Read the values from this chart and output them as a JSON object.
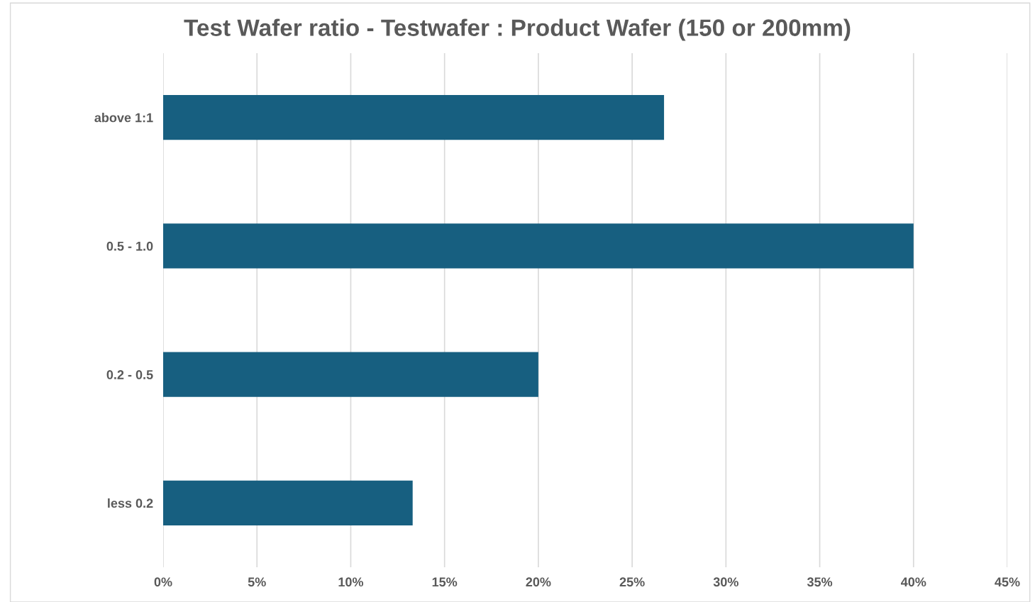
{
  "chart_data": {
    "type": "bar",
    "orientation": "horizontal",
    "title": "Test Wafer ratio - Testwafer : Product Wafer (150 or 200mm)",
    "categories": [
      "above 1:1",
      "0.5 - 1.0",
      "0.2 - 0.5",
      "less 0.2"
    ],
    "values": [
      26.7,
      40,
      20,
      13.3
    ],
    "color": "#175f80",
    "xlim": [
      0,
      45
    ],
    "xticks": [
      {
        "value": 0,
        "label": "0%"
      },
      {
        "value": 5,
        "label": "5%"
      },
      {
        "value": 10,
        "label": "10%"
      },
      {
        "value": 15,
        "label": "15%"
      },
      {
        "value": 20,
        "label": "20%"
      },
      {
        "value": 25,
        "label": "25%"
      },
      {
        "value": 30,
        "label": "30%"
      },
      {
        "value": 35,
        "label": "35%"
      },
      {
        "value": 40,
        "label": "40%"
      },
      {
        "value": 45,
        "label": "45%"
      }
    ],
    "grid": "x",
    "legend": false
  }
}
